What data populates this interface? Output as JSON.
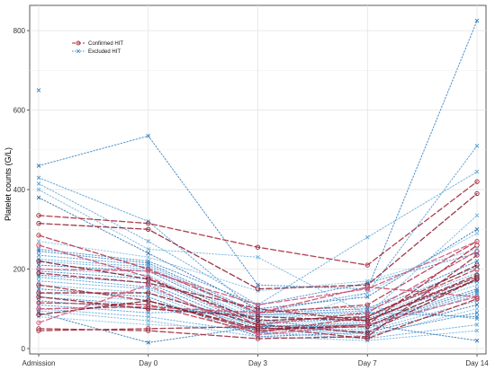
{
  "chart_data": {
    "type": "line",
    "title": "",
    "xlabel": "",
    "ylabel": "Platelet counts (G/L)",
    "categories": [
      "Admission",
      "Day 0",
      "Day 3",
      "Day 7",
      "Day 14"
    ],
    "ylim": [
      0,
      850
    ],
    "yticks": [
      0,
      200,
      400,
      600,
      800
    ],
    "grid": true,
    "legend_position": "top-left",
    "legend": [
      {
        "label": "Confirmed HIT",
        "color": "#a52a3a",
        "marker": "circle",
        "dash": "dashed"
      },
      {
        "label": "Excluded HIT",
        "color": "#3a86c6",
        "marker": "cross",
        "dash": "dotted"
      }
    ],
    "confirmed_series": [
      [
        335,
        315,
        255,
        210,
        420
      ],
      [
        315,
        300,
        150,
        160,
        390
      ],
      [
        285,
        200,
        90,
        110,
        270
      ],
      [
        260,
        180,
        60,
        90,
        245
      ],
      [
        220,
        175,
        70,
        80,
        210
      ],
      [
        200,
        195,
        110,
        150,
        270
      ],
      [
        190,
        165,
        100,
        70,
        180
      ],
      [
        160,
        120,
        45,
        60,
        260
      ],
      [
        140,
        140,
        60,
        40,
        175
      ],
      [
        115,
        110,
        40,
        80,
        200
      ],
      [
        100,
        105,
        90,
        155,
        130
      ],
      [
        85,
        120,
        50,
        55,
        175
      ],
      [
        65,
        160,
        35,
        60,
        130
      ],
      [
        50,
        45,
        25,
        30,
        235
      ],
      [
        45,
        50,
        55,
        25,
        125
      ],
      [
        130,
        100,
        80,
        70,
        185
      ]
    ],
    "excluded_series": [
      [
        650,
        null,
        null,
        null,
        null
      ],
      [
        460,
        535,
        160,
        150,
        825
      ],
      [
        430,
        320,
        90,
        140,
        510
      ],
      [
        415,
        270,
        110,
        280,
        445
      ],
      [
        400,
        250,
        230,
        85,
        335
      ],
      [
        380,
        240,
        100,
        130,
        300
      ],
      [
        270,
        230,
        145,
        170,
        250
      ],
      [
        250,
        220,
        110,
        165,
        240
      ],
      [
        245,
        215,
        90,
        100,
        220
      ],
      [
        235,
        210,
        85,
        95,
        205
      ],
      [
        225,
        205,
        80,
        85,
        190
      ],
      [
        220,
        200,
        70,
        80,
        180
      ],
      [
        210,
        195,
        65,
        75,
        170
      ],
      [
        200,
        185,
        60,
        70,
        160
      ],
      [
        195,
        175,
        55,
        65,
        150
      ],
      [
        185,
        165,
        50,
        60,
        145
      ],
      [
        180,
        155,
        45,
        55,
        140
      ],
      [
        170,
        150,
        40,
        50,
        135
      ],
      [
        160,
        140,
        35,
        45,
        120
      ],
      [
        150,
        130,
        30,
        40,
        110
      ],
      [
        140,
        120,
        60,
        30,
        100
      ],
      [
        130,
        110,
        75,
        35,
        90
      ],
      [
        120,
        100,
        85,
        90,
        80
      ],
      [
        110,
        90,
        95,
        105,
        75
      ],
      [
        100,
        80,
        40,
        25,
        60
      ],
      [
        95,
        70,
        30,
        20,
        45
      ],
      [
        90,
        15,
        55,
        60,
        20
      ],
      [
        80,
        60,
        50,
        140,
        290
      ]
    ]
  }
}
